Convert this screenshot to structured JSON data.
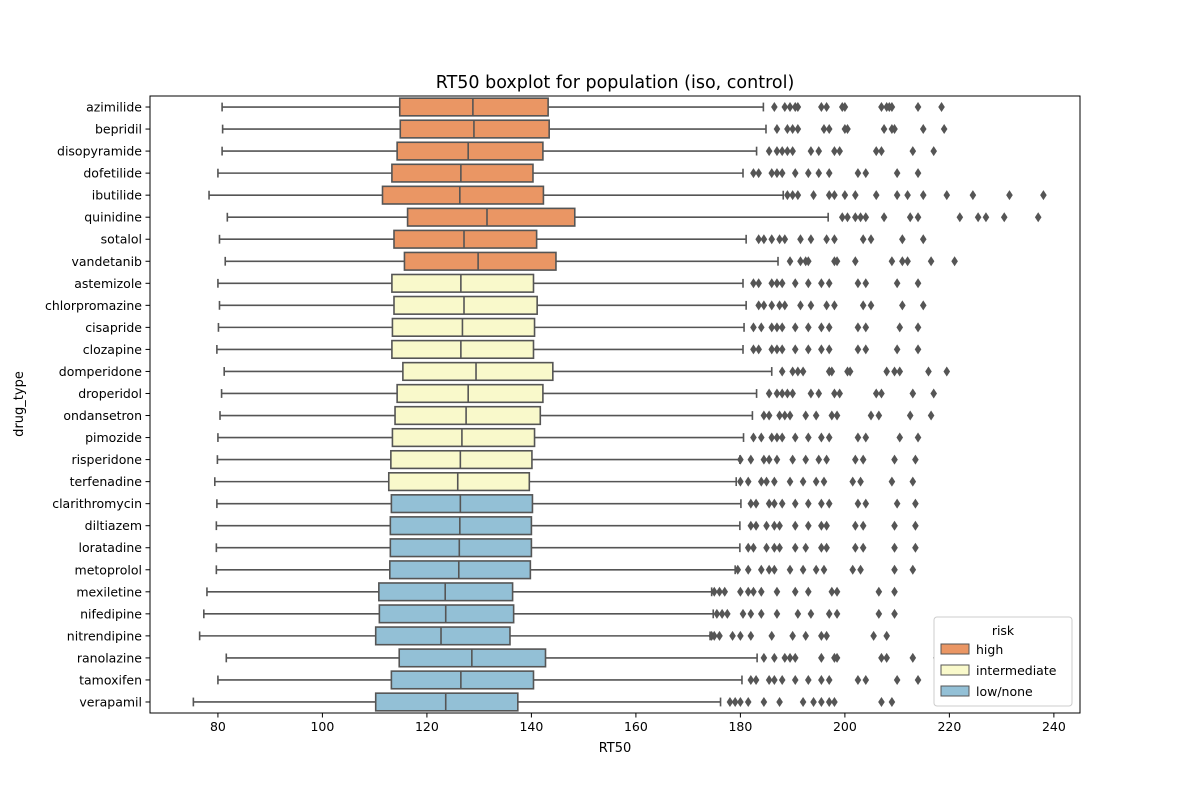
{
  "chart_data": {
    "type": "boxplot",
    "orientation": "horizontal",
    "title": "RT50 boxplot for population (iso, control)",
    "xlabel": "RT50",
    "ylabel": "drug_type",
    "xlim": [
      67,
      245
    ],
    "xticks": [
      80,
      100,
      120,
      140,
      160,
      180,
      200,
      220,
      240
    ],
    "grid": false,
    "legend": {
      "title": "risk",
      "position": "lower-right",
      "entries": [
        {
          "label": "high",
          "color": "#ea9664"
        },
        {
          "label": "intermediate",
          "color": "#f9f9cb"
        },
        {
          "label": "low/none",
          "color": "#93c0d6"
        }
      ]
    },
    "colors": {
      "high": "#ea9664",
      "intermediate": "#f9f9cb",
      "low/none": "#93c0d6"
    },
    "categories": [
      {
        "name": "azimilide",
        "risk": "high",
        "whislo": 80.8,
        "q1": 114.8,
        "med": 128.8,
        "q3": 143.2,
        "whishi": 184.4,
        "outliers": [
          186.5,
          188.5,
          189.5,
          190.5,
          191,
          195.5,
          196.5,
          199.5,
          200,
          207,
          208,
          208.5,
          209,
          214,
          218.5
        ]
      },
      {
        "name": "bepridil",
        "risk": "high",
        "whislo": 80.9,
        "q1": 114.9,
        "med": 129,
        "q3": 143.4,
        "whishi": 184.9,
        "outliers": [
          187,
          189,
          190,
          191,
          196,
          197,
          200,
          200.5,
          207.5,
          209,
          209.5,
          215,
          219
        ]
      },
      {
        "name": "disopyramide",
        "risk": "high",
        "whislo": 80.8,
        "q1": 114.3,
        "med": 127.9,
        "q3": 142.2,
        "whishi": 183.1,
        "outliers": [
          185.5,
          187,
          188,
          189,
          190,
          193.5,
          195,
          198,
          199,
          206,
          207,
          213,
          217
        ]
      },
      {
        "name": "dofetilide",
        "risk": "high",
        "whislo": 80,
        "q1": 113.3,
        "med": 126.5,
        "q3": 140.3,
        "whishi": 180.5,
        "outliers": [
          182.5,
          183.5,
          186,
          187,
          188,
          190.5,
          193,
          195,
          197,
          202.5,
          204,
          210,
          214
        ]
      },
      {
        "name": "ibutilide",
        "risk": "high",
        "whislo": 78.3,
        "q1": 111.5,
        "med": 126.3,
        "q3": 142.3,
        "whishi": 188.2,
        "outliers": [
          189,
          190,
          191,
          194,
          197,
          198,
          200,
          202,
          206,
          210,
          212,
          215,
          219.5,
          224.5,
          231.5,
          238
        ]
      },
      {
        "name": "quinidine",
        "risk": "high",
        "whislo": 81.8,
        "q1": 116.3,
        "med": 131.5,
        "q3": 148.3,
        "whishi": 196.8,
        "outliers": [
          199.5,
          200.5,
          202,
          203,
          204,
          207.5,
          212.5,
          214,
          222,
          225.5,
          227,
          230.5,
          237
        ]
      },
      {
        "name": "sotalol",
        "risk": "high",
        "whislo": 80.3,
        "q1": 113.7,
        "med": 127.1,
        "q3": 141,
        "whishi": 181.1,
        "outliers": [
          183.5,
          184.5,
          186,
          187.5,
          188.5,
          191.5,
          193.5,
          196.5,
          198,
          203.5,
          205,
          211,
          215
        ]
      },
      {
        "name": "vandetanib",
        "risk": "high",
        "whislo": 81.4,
        "q1": 115.7,
        "med": 129.8,
        "q3": 144.7,
        "whishi": 187.2,
        "outliers": [
          189.5,
          191.5,
          192.5,
          193,
          198,
          198.5,
          202,
          209,
          211,
          212,
          216.5,
          221
        ]
      },
      {
        "name": "astemizole",
        "risk": "intermediate",
        "whislo": 80,
        "q1": 113.3,
        "med": 126.5,
        "q3": 140.4,
        "whishi": 180.5,
        "outliers": [
          182.5,
          183.5,
          186,
          187,
          188,
          190.5,
          193,
          195.5,
          197,
          202.5,
          204,
          210,
          214
        ]
      },
      {
        "name": "chlorpromazine",
        "risk": "intermediate",
        "whislo": 80.3,
        "q1": 113.7,
        "med": 127.1,
        "q3": 141.1,
        "whishi": 181.1,
        "outliers": [
          183.5,
          184.5,
          186,
          187.5,
          188.5,
          191.5,
          193.5,
          196.5,
          198,
          203.5,
          205,
          211,
          215
        ]
      },
      {
        "name": "cisapride",
        "risk": "intermediate",
        "whislo": 80.1,
        "q1": 113.4,
        "med": 126.8,
        "q3": 140.6,
        "whishi": 180.7,
        "outliers": [
          182.5,
          184,
          186,
          187,
          188,
          190.5,
          193,
          195.5,
          197,
          202.5,
          204,
          210.5,
          214
        ]
      },
      {
        "name": "clozapine",
        "risk": "intermediate",
        "whislo": 79.8,
        "q1": 113.3,
        "med": 126.5,
        "q3": 140.4,
        "whishi": 180.5,
        "outliers": [
          182.5,
          183.5,
          186,
          187,
          188,
          190.5,
          193,
          195.5,
          197,
          202.5,
          204,
          210,
          214
        ]
      },
      {
        "name": "domperidone",
        "risk": "intermediate",
        "whislo": 81.2,
        "q1": 115.4,
        "med": 129.4,
        "q3": 144.1,
        "whishi": 186,
        "outliers": [
          188,
          190,
          191,
          192,
          197,
          197.5,
          200.5,
          201,
          208,
          209.5,
          210.5,
          216,
          219.5
        ]
      },
      {
        "name": "droperidol",
        "risk": "intermediate",
        "whislo": 80.7,
        "q1": 114.3,
        "med": 127.9,
        "q3": 142.2,
        "whishi": 183.1,
        "outliers": [
          185.5,
          187,
          188,
          189,
          190,
          193.5,
          195,
          198,
          199,
          206,
          207,
          213,
          217
        ]
      },
      {
        "name": "ondansetron",
        "risk": "intermediate",
        "whislo": 80.4,
        "q1": 113.9,
        "med": 127.5,
        "q3": 141.7,
        "whishi": 182.3,
        "outliers": [
          184.5,
          185.5,
          187.5,
          188.5,
          189.5,
          192.5,
          194.5,
          197.5,
          198.5,
          205,
          206.5,
          212.5,
          216.5
        ]
      },
      {
        "name": "pimozide",
        "risk": "intermediate",
        "whislo": 80,
        "q1": 113.4,
        "med": 126.7,
        "q3": 140.6,
        "whishi": 180.6,
        "outliers": [
          182.5,
          184,
          186,
          187,
          188,
          190.5,
          193,
          195.5,
          197,
          202.5,
          204,
          210.5,
          214
        ]
      },
      {
        "name": "risperidone",
        "risk": "intermediate",
        "whislo": 79.9,
        "q1": 113.1,
        "med": 126.4,
        "q3": 140.1,
        "whishi": 179.9,
        "outliers": [
          180,
          182,
          184.5,
          185.5,
          187,
          190,
          192.5,
          195,
          196.5,
          202,
          203.5,
          209.5,
          213.5
        ]
      },
      {
        "name": "terfenadine",
        "risk": "intermediate",
        "whislo": 79.4,
        "q1": 112.7,
        "med": 125.9,
        "q3": 139.6,
        "whishi": 179.2,
        "outliers": [
          180,
          181.5,
          184,
          185,
          186.5,
          189.5,
          192,
          194.5,
          196,
          201.5,
          203,
          209,
          213
        ]
      },
      {
        "name": "clarithromycin",
        "risk": "low/none",
        "whislo": 79.8,
        "q1": 113.2,
        "med": 126.4,
        "q3": 140.2,
        "whishi": 180.1,
        "outliers": [
          182,
          183,
          185.5,
          186.5,
          188,
          190.5,
          193,
          195.5,
          197,
          202.5,
          204,
          210,
          213.5
        ]
      },
      {
        "name": "diltiazem",
        "risk": "low/none",
        "whislo": 79.7,
        "q1": 113,
        "med": 126.3,
        "q3": 140,
        "whishi": 179.9,
        "outliers": [
          182,
          183,
          185,
          186.5,
          187.5,
          190.5,
          193,
          195.5,
          196.5,
          202,
          203.5,
          209.5,
          213.5
        ]
      },
      {
        "name": "loratadine",
        "risk": "low/none",
        "whislo": 79.7,
        "q1": 113,
        "med": 126.2,
        "q3": 140,
        "whishi": 179.9,
        "outliers": [
          181.5,
          182.5,
          185,
          186.5,
          187.5,
          190.5,
          192.5,
          195.5,
          196.5,
          202,
          203.5,
          209.5,
          213.5
        ]
      },
      {
        "name": "metoprolol",
        "risk": "low/none",
        "whislo": 79.7,
        "q1": 112.9,
        "med": 126.1,
        "q3": 139.8,
        "whishi": 179,
        "outliers": [
          179.5,
          181.5,
          184,
          185.5,
          186.5,
          189.5,
          192,
          194.5,
          196,
          201.5,
          203,
          209.5,
          213
        ]
      },
      {
        "name": "mexiletine",
        "risk": "low/none",
        "whislo": 77.9,
        "q1": 110.8,
        "med": 123.5,
        "q3": 136.4,
        "whishi": 174.5,
        "outliers": [
          175,
          176,
          177,
          180,
          181.5,
          182.5,
          184,
          187,
          190.5,
          193,
          197.5,
          198.5,
          206.5,
          209.5
        ]
      },
      {
        "name": "nifedipine",
        "risk": "low/none",
        "whislo": 77.3,
        "q1": 110.9,
        "med": 123.6,
        "q3": 136.6,
        "whishi": 174.8,
        "outliers": [
          175.5,
          176.5,
          177.5,
          180.5,
          182,
          184,
          187,
          191,
          193.5,
          197,
          198.5,
          206.5,
          209.5
        ]
      },
      {
        "name": "nitrendipine",
        "risk": "low/none",
        "whislo": 76.5,
        "q1": 110.2,
        "med": 122.7,
        "q3": 135.9,
        "whishi": 174.2,
        "outliers": [
          174.5,
          175,
          176,
          178.5,
          180,
          182,
          186,
          190,
          192.5,
          195.5,
          196.5,
          205.5,
          208
        ]
      },
      {
        "name": "ranolazine",
        "risk": "low/none",
        "whislo": 81.6,
        "q1": 114.7,
        "med": 128.6,
        "q3": 142.7,
        "whishi": 183.2,
        "outliers": [
          184.5,
          186.5,
          188.5,
          189.5,
          190.5,
          195.5,
          198,
          198.5,
          207,
          208,
          213,
          217.5
        ]
      },
      {
        "name": "tamoxifen",
        "risk": "low/none",
        "whislo": 80,
        "q1": 113.2,
        "med": 126.5,
        "q3": 140.4,
        "whishi": 180.3,
        "outliers": [
          182,
          183,
          185.5,
          186.5,
          188,
          190.5,
          193,
          195.5,
          197,
          202.5,
          204,
          210,
          214
        ]
      },
      {
        "name": "verapamil",
        "risk": "low/none",
        "whislo": 75.3,
        "q1": 110.2,
        "med": 123.6,
        "q3": 137.4,
        "whishi": 176.2,
        "outliers": [
          178,
          179,
          180,
          181.5,
          184.5,
          187.5,
          192,
          194,
          195.5,
          197,
          198,
          207,
          209
        ]
      }
    ]
  }
}
